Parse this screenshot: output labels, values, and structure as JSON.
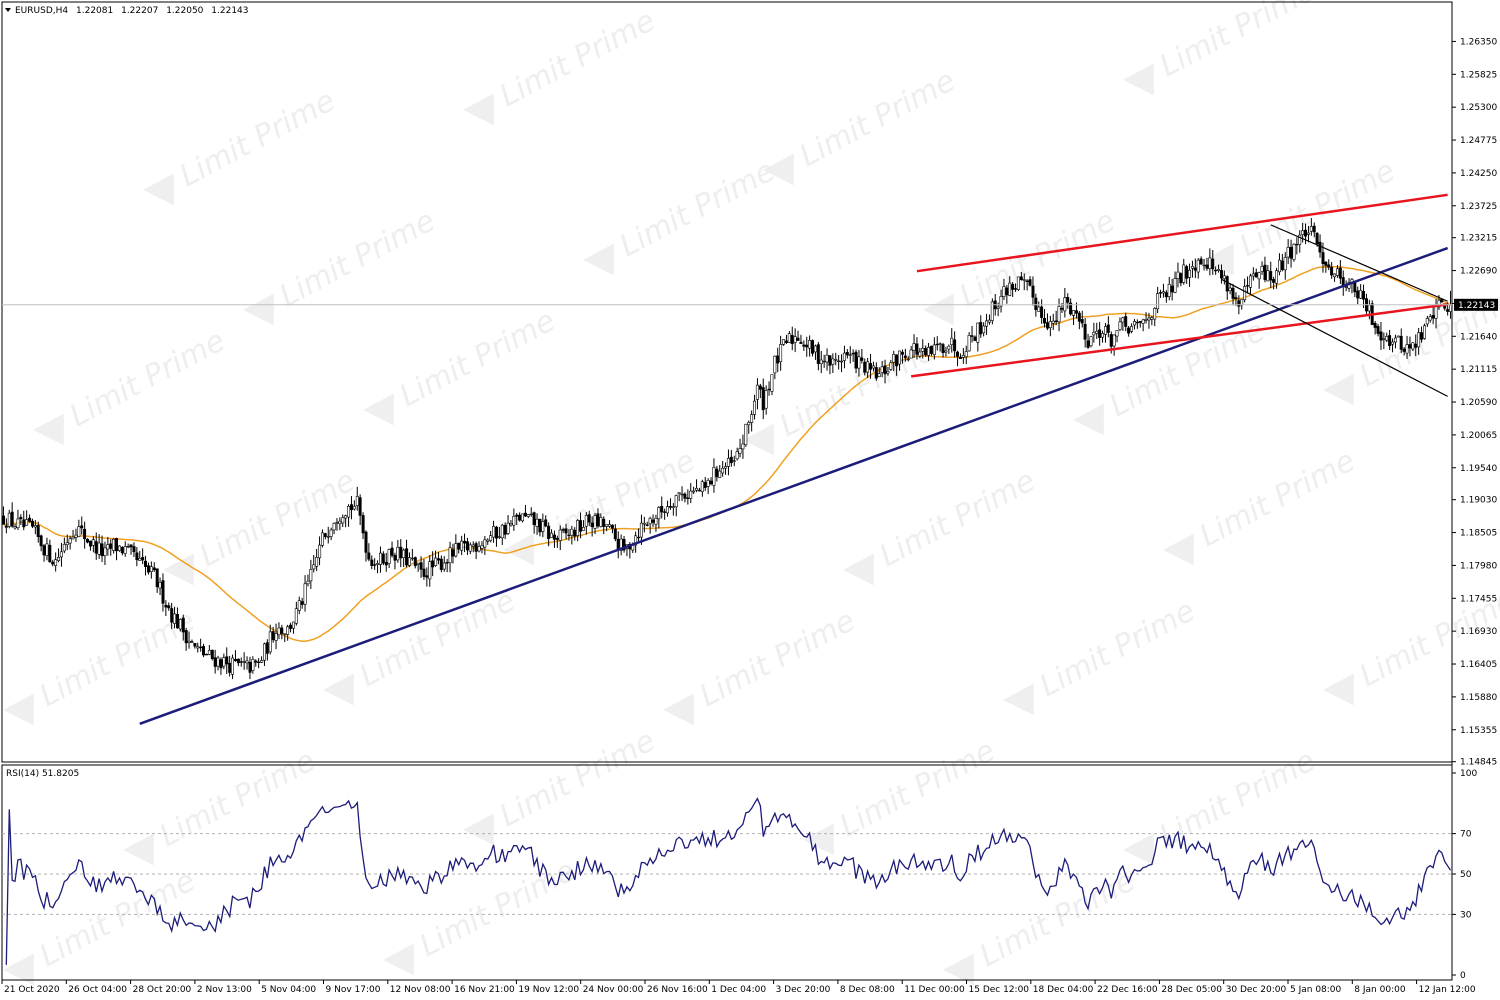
{
  "header": {
    "symbol": "EURUSD,H4",
    "open": "1.22081",
    "high": "1.22207",
    "low": "1.22050",
    "close": "1.22143"
  },
  "rsi_header": "RSI(14) 51.8205",
  "current_price_label": "1.22143",
  "watermark_text": "Limit Prime",
  "colors": {
    "bull_candle": "#ffffff",
    "bear_candle": "#000000",
    "moving_average": "#f0a020",
    "support_trendline": "#1c1c7a",
    "channel_lines": "#e8141e",
    "falling_channel": "#000000",
    "rsi_line": "#1c1c7a"
  },
  "chart_data": [
    {
      "type": "candlestick",
      "title": "",
      "symbol": "EURUSD",
      "timeframe": "H4",
      "x_ticks": [
        "21 Oct 2020",
        "26 Oct 04:00",
        "28 Oct 20:00",
        "2 Nov 13:00",
        "5 Nov 04:00",
        "9 Nov 17:00",
        "12 Nov 08:00",
        "16 Nov 21:00",
        "19 Nov 12:00",
        "24 Nov 00:00",
        "26 Nov 16:00",
        "1 Dec 04:00",
        "3 Dec 20:00",
        "8 Dec 08:00",
        "11 Dec 00:00",
        "15 Dec 12:00",
        "18 Dec 04:00",
        "22 Dec 16:00",
        "28 Dec 05:00",
        "30 Dec 20:00",
        "5 Jan 08:00",
        "8 Jan 00:00",
        "12 Jan 12:00"
      ],
      "y_ticks": [
        "1.26350",
        "1.25825",
        "1.25300",
        "1.24775",
        "1.24250",
        "1.23725",
        "1.23215",
        "1.22690",
        "1.22165",
        "1.21640",
        "1.21115",
        "1.20590",
        "1.20065",
        "1.19540",
        "1.19030",
        "1.18505",
        "1.17980",
        "1.17455",
        "1.16930",
        "1.16405",
        "1.15880",
        "1.15355",
        "1.14845"
      ],
      "ylim": [
        1.1484,
        1.2698
      ],
      "last_price": 1.22143,
      "price_path": [
        [
          0,
          1.1875
        ],
        [
          5,
          1.1862
        ],
        [
          10,
          1.1855
        ],
        [
          15,
          1.182
        ],
        [
          18,
          1.1805
        ],
        [
          22,
          1.184
        ],
        [
          25,
          1.186
        ],
        [
          30,
          1.1835
        ],
        [
          35,
          1.1815
        ],
        [
          38,
          1.183
        ],
        [
          42,
          1.1822
        ],
        [
          46,
          1.1805
        ],
        [
          52,
          1.178
        ],
        [
          58,
          1.172
        ],
        [
          62,
          1.1695
        ],
        [
          66,
          1.1665
        ],
        [
          72,
          1.165
        ],
        [
          78,
          1.164
        ],
        [
          84,
          1.1635
        ],
        [
          88,
          1.164
        ],
        [
          94,
          1.17
        ],
        [
          98,
          1.1695
        ],
        [
          102,
          1.173
        ],
        [
          106,
          1.178
        ],
        [
          110,
          1.184
        ],
        [
          114,
          1.1875
        ],
        [
          118,
          1.189
        ],
        [
          122,
          1.1895
        ],
        [
          126,
          1.181
        ],
        [
          130,
          1.1805
        ],
        [
          134,
          1.182
        ],
        [
          140,
          1.1805
        ],
        [
          144,
          1.1785
        ],
        [
          150,
          1.18
        ],
        [
          156,
          1.182
        ],
        [
          162,
          1.183
        ],
        [
          168,
          1.1845
        ],
        [
          174,
          1.186
        ],
        [
          178,
          1.1875
        ],
        [
          184,
          1.1865
        ],
        [
          190,
          1.184
        ],
        [
          196,
          1.185
        ],
        [
          202,
          1.187
        ],
        [
          208,
          1.186
        ],
        [
          214,
          1.182
        ],
        [
          220,
          1.186
        ],
        [
          226,
          1.188
        ],
        [
          232,
          1.191
        ],
        [
          238,
          1.1915
        ],
        [
          242,
          1.192
        ],
        [
          246,
          1.195
        ],
        [
          252,
          1.196
        ],
        [
          256,
          1.201
        ],
        [
          260,
          1.208
        ],
        [
          262,
          1.206
        ],
        [
          266,
          1.212
        ],
        [
          270,
          1.2155
        ],
        [
          274,
          1.2165
        ],
        [
          278,
          1.2145
        ],
        [
          282,
          1.213
        ],
        [
          286,
          1.212
        ],
        [
          290,
          1.2135
        ],
        [
          294,
          1.2125
        ],
        [
          298,
          1.211
        ],
        [
          302,
          1.21
        ],
        [
          306,
          1.212
        ],
        [
          310,
          1.2135
        ],
        [
          314,
          1.2145
        ],
        [
          318,
          1.213
        ],
        [
          322,
          1.2145
        ],
        [
          326,
          1.2155
        ],
        [
          330,
          1.214
        ],
        [
          334,
          1.2165
        ],
        [
          338,
          1.2185
        ],
        [
          342,
          1.2215
        ],
        [
          346,
          1.224
        ],
        [
          350,
          1.225
        ],
        [
          354,
          1.2235
        ],
        [
          358,
          1.22
        ],
        [
          362,
          1.218
        ],
        [
          366,
          1.222
        ],
        [
          370,
          1.22
        ],
        [
          374,
          1.216
        ],
        [
          378,
          1.2175
        ],
        [
          382,
          1.216
        ],
        [
          386,
          1.218
        ],
        [
          390,
          1.2175
        ],
        [
          394,
          1.219
        ],
        [
          398,
          1.222
        ],
        [
          402,
          1.2235
        ],
        [
          406,
          1.226
        ],
        [
          410,
          1.228
        ],
        [
          414,
          1.229
        ],
        [
          418,
          1.227
        ],
        [
          422,
          1.225
        ],
        [
          426,
          1.221
        ],
        [
          430,
          1.225
        ],
        [
          434,
          1.2265
        ],
        [
          438,
          1.2255
        ],
        [
          442,
          1.229
        ],
        [
          446,
          1.2315
        ],
        [
          450,
          1.2335
        ],
        [
          454,
          1.23
        ],
        [
          458,
          1.227
        ],
        [
          462,
          1.2255
        ],
        [
          466,
          1.224
        ],
        [
          470,
          1.221
        ],
        [
          474,
          1.2175
        ],
        [
          478,
          1.216
        ],
        [
          482,
          1.215
        ],
        [
          486,
          1.2145
        ],
        [
          490,
          1.2175
        ],
        [
          494,
          1.2214
        ]
      ],
      "series": [
        {
          "name": "",
          "kind": "moving_average"
        }
      ],
      "trendlines": [
        {
          "kind": "support",
          "from": [
            47,
            1.1545
          ],
          "to": [
            498,
            1.2305
          ]
        },
        {
          "kind": "channel_upper",
          "from": [
            315,
            1.2268
          ],
          "to": [
            498,
            1.239
          ]
        },
        {
          "kind": "channel_lower",
          "from": [
            313,
            1.21
          ],
          "to": [
            498,
            1.2215
          ]
        },
        {
          "kind": "falling_upper",
          "from": [
            437,
            1.2342
          ],
          "to": [
            498,
            1.222
          ]
        },
        {
          "kind": "falling_lower",
          "from": [
            420,
            1.2255
          ],
          "to": [
            498,
            1.2068
          ]
        }
      ]
    },
    {
      "type": "line",
      "title": "RSI(14) 51.8205",
      "ylim": [
        0,
        100
      ],
      "y_ticks": [
        100,
        70,
        50,
        30,
        0
      ],
      "levels": [
        70,
        50,
        30
      ],
      "last_value": 51.8205
    }
  ]
}
